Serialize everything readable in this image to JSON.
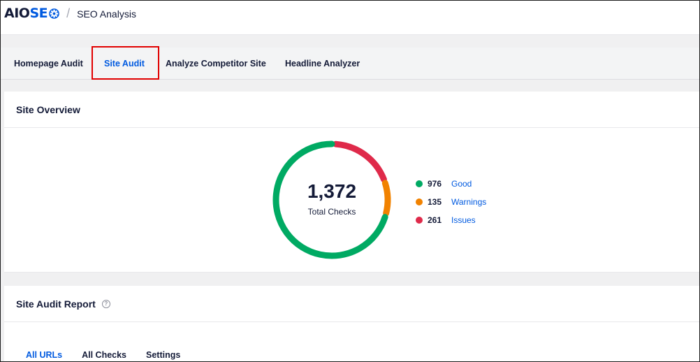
{
  "header": {
    "logo_aio": "AIO",
    "logo_seo": "SE",
    "separator": "/",
    "title": "SEO Analysis"
  },
  "tabs": [
    {
      "label": "Homepage Audit",
      "active": false
    },
    {
      "label": "Site Audit",
      "active": true
    },
    {
      "label": "Analyze Competitor Site",
      "active": false
    },
    {
      "label": "Headline Analyzer",
      "active": false
    }
  ],
  "overview": {
    "title": "Site Overview",
    "total": "1,372",
    "total_label": "Total Checks",
    "legend": [
      {
        "count": "976",
        "label": "Good",
        "color": "#00aa63"
      },
      {
        "count": "135",
        "label": "Warnings",
        "color": "#f18200"
      },
      {
        "count": "261",
        "label": "Issues",
        "color": "#df2a4a"
      }
    ]
  },
  "report": {
    "title": "Site Audit Report",
    "help_icon": "question-circle-icon",
    "tabs": [
      {
        "label": "All URLs",
        "active": true
      },
      {
        "label": "All Checks",
        "active": false
      },
      {
        "label": "Settings",
        "active": false
      }
    ]
  },
  "chart_data": {
    "type": "pie",
    "categories": [
      "Good",
      "Warnings",
      "Issues"
    ],
    "values": [
      976,
      135,
      261
    ],
    "colors": [
      "#00aa63",
      "#f18200",
      "#df2a4a"
    ],
    "title": "",
    "center_value": "1,372",
    "center_label": "Total Checks"
  }
}
